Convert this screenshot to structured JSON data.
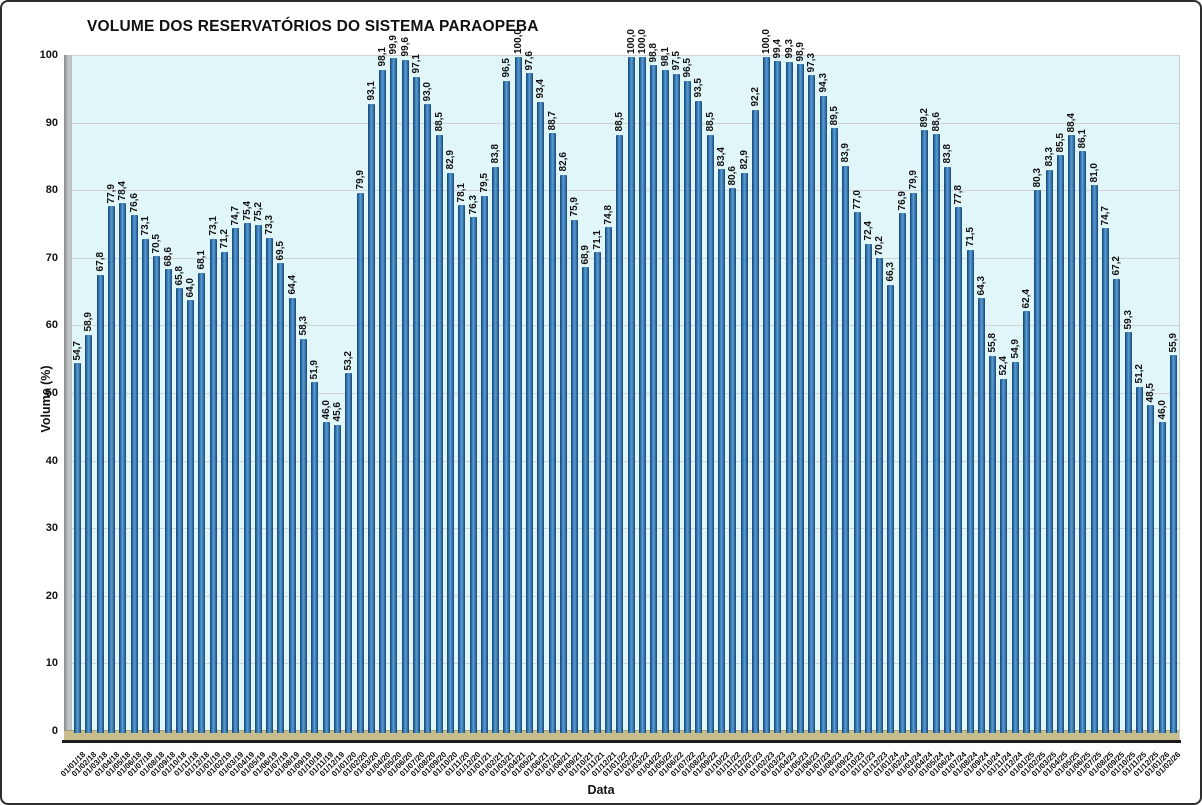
{
  "chart_data": {
    "type": "bar",
    "title": "VOLUME DOS RESERVATÓRIOS DO SISTEMA PARAOPEBA",
    "xlabel": "Data",
    "ylabel": "Volume (%)",
    "ylim": [
      0,
      100
    ],
    "yticks": [
      0,
      10,
      20,
      30,
      40,
      50,
      60,
      70,
      80,
      90,
      100
    ],
    "grid": true,
    "legend": false,
    "decimal_separator": ",",
    "bar_color_main": "#2e6da4",
    "bar_color_edge": "#16436e",
    "bar_color_highlight": "#5b9bd1",
    "plot_background": "#e1f6f9",
    "floor_color": "#c7be8e",
    "categories": [
      "01/01/18",
      "01/02/18",
      "01/03/18",
      "01/04/18",
      "01/05/18",
      "01/06/18",
      "01/07/18",
      "01/08/18",
      "01/09/18",
      "01/10/18",
      "01/11/18",
      "01/12/18",
      "01/01/19",
      "01/02/19",
      "01/03/19",
      "01/04/19",
      "01/05/19",
      "01/06/19",
      "01/07/19",
      "01/08/19",
      "01/09/19",
      "01/10/19",
      "01/11/19",
      "01/12/19",
      "01/01/20",
      "01/02/20",
      "01/03/20",
      "01/04/20",
      "01/05/20",
      "01/06/20",
      "01/07/20",
      "01/08/20",
      "01/09/20",
      "01/10/20",
      "01/11/20",
      "01/12/20",
      "01/01/21",
      "01/02/21",
      "01/03/21",
      "01/04/21",
      "01/05/21",
      "01/06/21",
      "01/07/21",
      "01/08/21",
      "01/09/21",
      "01/10/21",
      "01/11/21",
      "01/12/21",
      "01/01/22",
      "01/02/22",
      "01/03/22",
      "01/04/22",
      "01/05/22",
      "01/06/22",
      "01/07/22",
      "01/08/22",
      "01/09/22",
      "01/10/22",
      "01/11/22",
      "01/12/22",
      "01/01/23",
      "01/02/23",
      "01/03/23",
      "01/04/23",
      "01/05/23",
      "01/06/23",
      "01/07/23",
      "01/08/23",
      "01/09/23",
      "01/10/23",
      "01/11/23",
      "01/12/23",
      "01/01/24",
      "01/02/24",
      "01/03/24",
      "01/04/24",
      "01/05/24",
      "01/06/24",
      "01/07/24",
      "01/08/24",
      "01/09/24",
      "01/10/24",
      "01/11/24",
      "01/12/24",
      "01/01/25",
      "01/02/25",
      "01/03/25",
      "01/04/25",
      "01/05/25",
      "01/06/25",
      "01/07/25",
      "01/08/25",
      "01/09/25",
      "01/10/25",
      "01/11/25",
      "01/12/25",
      "01/01/26",
      "01/02/26"
    ],
    "values": [
      54.7,
      58.9,
      67.8,
      77.9,
      78.4,
      76.6,
      73.1,
      70.5,
      68.6,
      65.8,
      64.0,
      68.1,
      73.1,
      71.2,
      74.7,
      75.4,
      75.2,
      73.3,
      69.5,
      64.4,
      58.3,
      51.9,
      46.0,
      45.6,
      53.2,
      79.9,
      93.1,
      98.1,
      99.9,
      99.6,
      97.1,
      93.0,
      88.5,
      82.9,
      78.1,
      76.3,
      79.5,
      83.8,
      96.5,
      100.0,
      97.6,
      93.4,
      88.7,
      82.6,
      75.9,
      68.9,
      71.1,
      74.8,
      88.5,
      100.0,
      100.0,
      98.8,
      98.1,
      97.5,
      96.5,
      93.5,
      88.5,
      83.4,
      80.6,
      82.9,
      92.2,
      100.0,
      99.4,
      99.3,
      98.9,
      97.3,
      94.3,
      89.5,
      83.9,
      77.0,
      72.4,
      70.2,
      66.3,
      76.9,
      79.9,
      89.2,
      88.6,
      83.8,
      77.8,
      71.5,
      64.3,
      55.8,
      52.4,
      54.9,
      62.4,
      80.3,
      83.3,
      85.5,
      88.4,
      86.1,
      81.0,
      74.7,
      67.2,
      59.3,
      51.2,
      48.5,
      46.0,
      55.9
    ]
  }
}
